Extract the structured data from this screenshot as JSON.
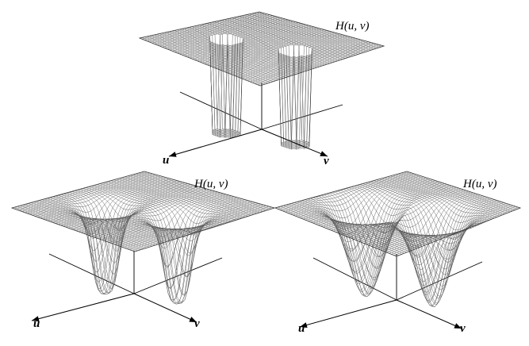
{
  "panels": [
    {
      "id": "ideal",
      "title": "H(u, v)",
      "u_label": "u",
      "v_label": "v",
      "profile": "ideal"
    },
    {
      "id": "butterworth",
      "title": "H(u, v)",
      "u_label": "u",
      "v_label": "v",
      "profile": "butterworth"
    },
    {
      "id": "gaussian",
      "title": "H(u, v)",
      "u_label": "u",
      "v_label": "v",
      "profile": "gaussian"
    }
  ],
  "colors": {
    "mesh": "#5a5a5a",
    "axis": "#000000",
    "background": "#ffffff"
  }
}
